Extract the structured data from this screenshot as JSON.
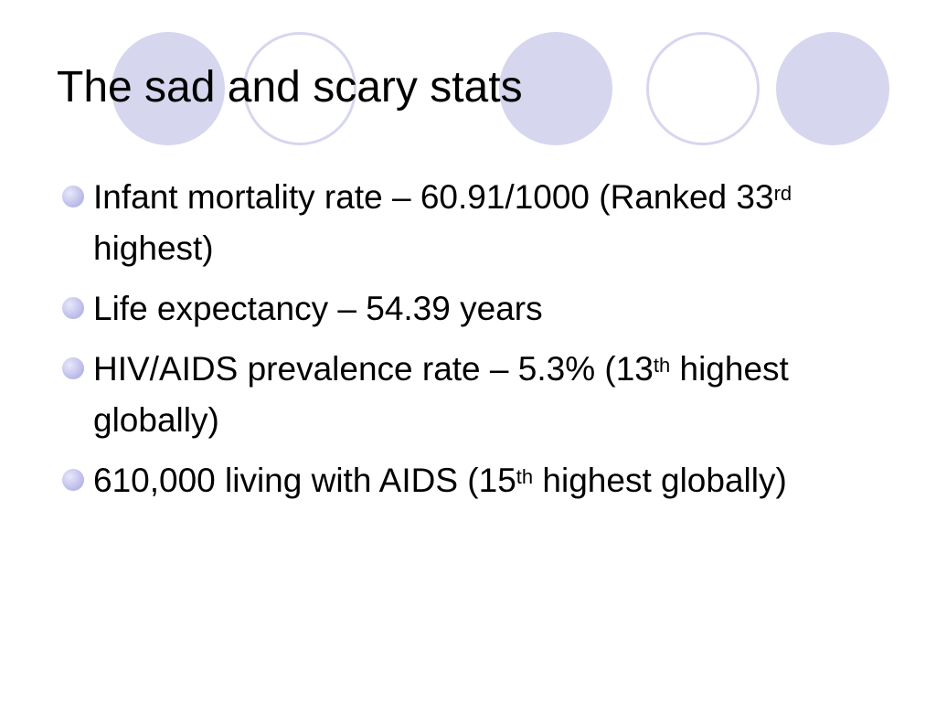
{
  "slide": {
    "title": "The sad and scary stats",
    "bullets": [
      {
        "text": "Infant mortality rate – 60.91/1000 (Ranked 33",
        "sup": "rd",
        "after": " highest)"
      },
      {
        "text": "Life expectancy – 54.39 years",
        "sup": "",
        "after": ""
      },
      {
        "text": "HIV/AIDS prevalence rate – 5.3% (13",
        "sup": "th",
        "after": " highest globally)"
      },
      {
        "text": "610,000 living with AIDS (15",
        "sup": "th",
        "after": " highest globally)"
      }
    ]
  },
  "colors": {
    "circle_fill": "#d6d6ef",
    "bullet": "#b8b8e8",
    "text": "#000000",
    "background": "#ffffff"
  }
}
